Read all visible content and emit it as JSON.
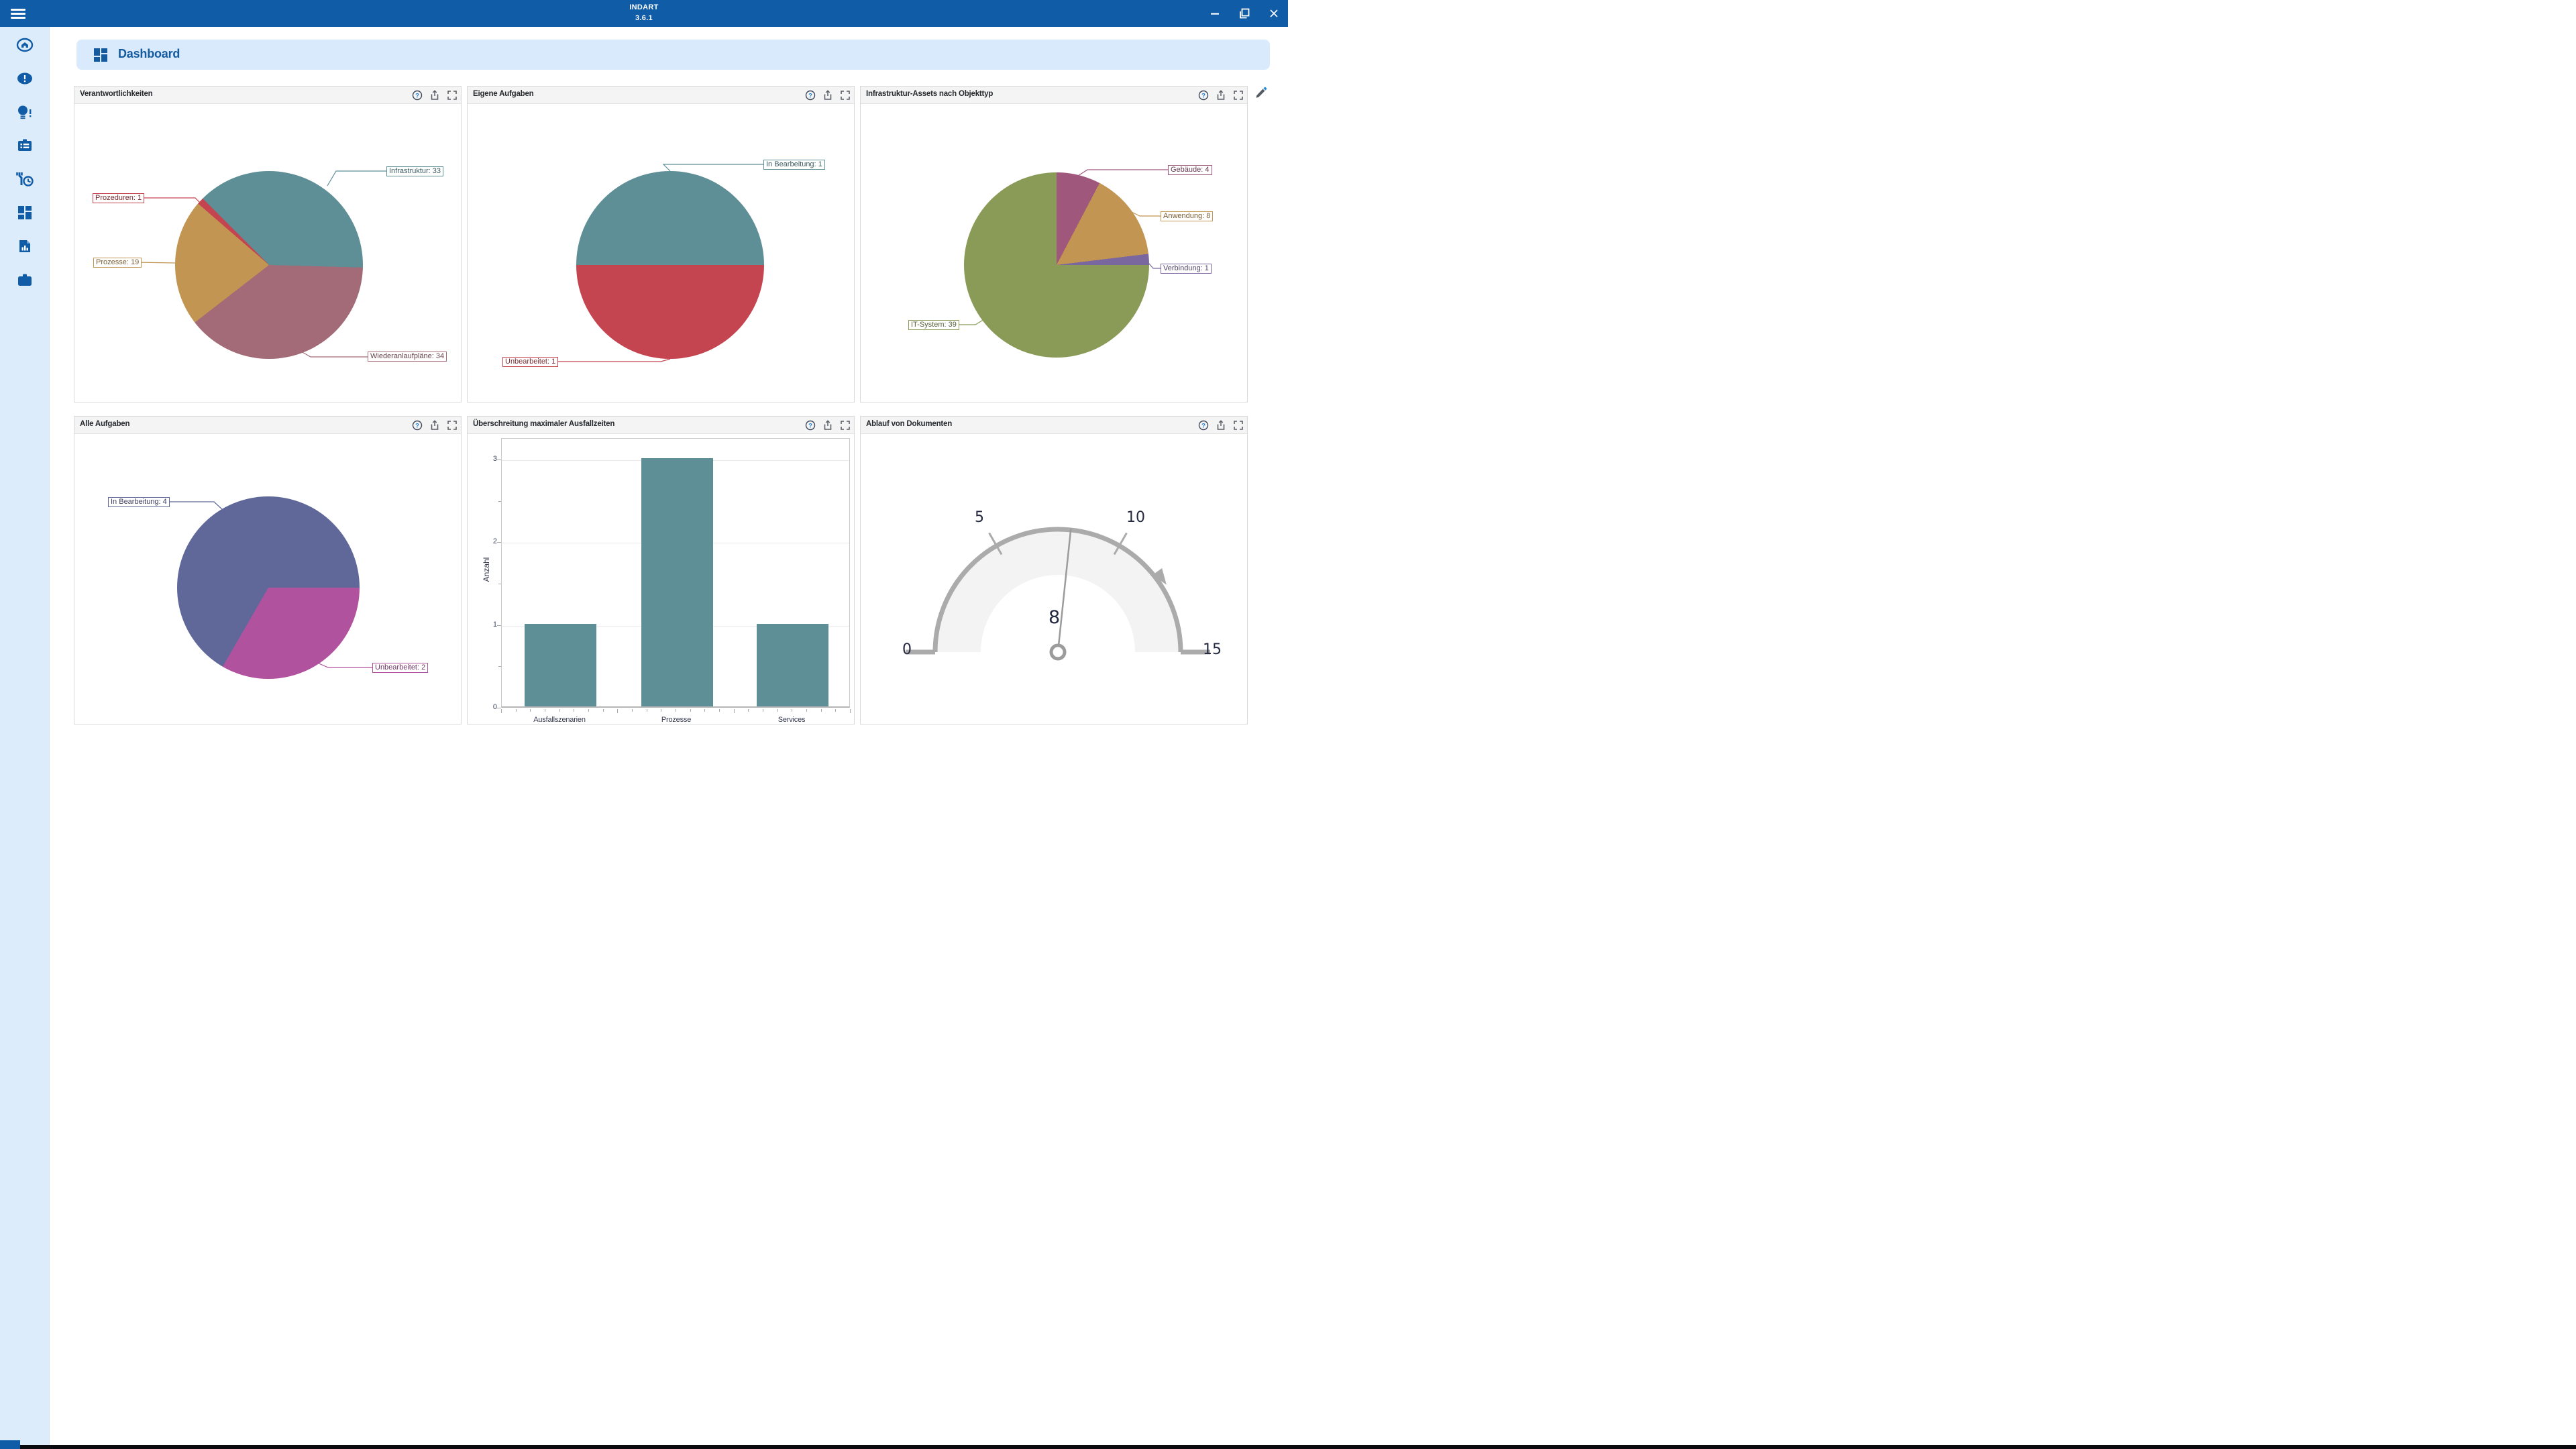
{
  "window": {
    "title_line1": "INDART",
    "title_line2": "3.6.1",
    "controls": [
      "minimize",
      "restore",
      "close"
    ]
  },
  "sidebar": {
    "icons": [
      "home",
      "alerts",
      "ideas",
      "tasks",
      "maintenance",
      "dashboards",
      "reports",
      "organization"
    ]
  },
  "header": {
    "title": "Dashboard"
  },
  "icons": {
    "help_glyph": "?"
  },
  "panels": [
    {
      "title": "Verantwortlichkeiten",
      "actions": [
        "help",
        "export",
        "maximize"
      ]
    },
    {
      "title": "Eigene Aufgaben",
      "actions": [
        "help",
        "export",
        "maximize"
      ]
    },
    {
      "title": "Infrastruktur-Assets nach Objekttyp",
      "actions": [
        "help",
        "export",
        "maximize"
      ]
    },
    {
      "title": "Alle Aufgaben",
      "actions": [
        "help",
        "export",
        "maximize"
      ]
    },
    {
      "title": "Überschreitung maximaler Ausfallzeiten",
      "actions": [
        "help",
        "export",
        "maximize"
      ]
    },
    {
      "title": "Ablauf von Dokumenten",
      "actions": [
        "help",
        "export",
        "maximize"
      ]
    }
  ],
  "chart_data": [
    {
      "panel": "Verantwortlichkeiten",
      "type": "pie",
      "start_angle_deg": -45,
      "slices": [
        {
          "label": "Infrastruktur",
          "value": 33,
          "color": "#5E8F97"
        },
        {
          "label": "Wiederanlaufpläne",
          "value": 34,
          "color": "#A26B77"
        },
        {
          "label": "Prozesse",
          "value": 19,
          "color": "#C29552"
        },
        {
          "label": "Prozeduren",
          "value": 1,
          "color": "#C4454F"
        }
      ]
    },
    {
      "panel": "Eigene Aufgaben",
      "type": "pie",
      "start_angle_deg": -90,
      "slices": [
        {
          "label": "In Bearbeitung",
          "value": 1,
          "color": "#5E8F97"
        },
        {
          "label": "Unbearbeitet",
          "value": 1,
          "color": "#C4454F"
        }
      ]
    },
    {
      "panel": "Infrastruktur-Assets nach Objekttyp",
      "type": "pie",
      "start_angle_deg": 0,
      "slices": [
        {
          "label": "Gebäude",
          "value": 4,
          "color": "#A0577C"
        },
        {
          "label": "Anwendung",
          "value": 8,
          "color": "#C29552"
        },
        {
          "label": "Verbindung",
          "value": 1,
          "color": "#7A67A0"
        },
        {
          "label": "IT-System",
          "value": 39,
          "color": "#8A9B57"
        }
      ]
    },
    {
      "panel": "Alle Aufgaben",
      "type": "pie",
      "start_angle_deg": 90,
      "slices": [
        {
          "label": "Unbearbeitet",
          "value": 2,
          "color": "#B1529E"
        },
        {
          "label": "In Bearbeitung",
          "value": 4,
          "color": "#5F6899"
        }
      ]
    },
    {
      "panel": "Überschreitung maximaler Ausfallzeiten",
      "type": "bar",
      "categories": [
        "Ausfallszenarien",
        "Prozesse",
        "Services"
      ],
      "values": [
        1,
        3,
        1
      ],
      "bar_color": "#5E8F97",
      "ylabel": "Anzahl",
      "xlabel": "",
      "ylim": [
        0,
        3.26
      ],
      "yticks": [
        0,
        1,
        2,
        3
      ],
      "grid": true
    },
    {
      "panel": "Ablauf von Dokumenten",
      "type": "gauge",
      "min": 0,
      "max": 15,
      "value": 8,
      "ticks": [
        5,
        10
      ],
      "marker_value": 12
    }
  ]
}
